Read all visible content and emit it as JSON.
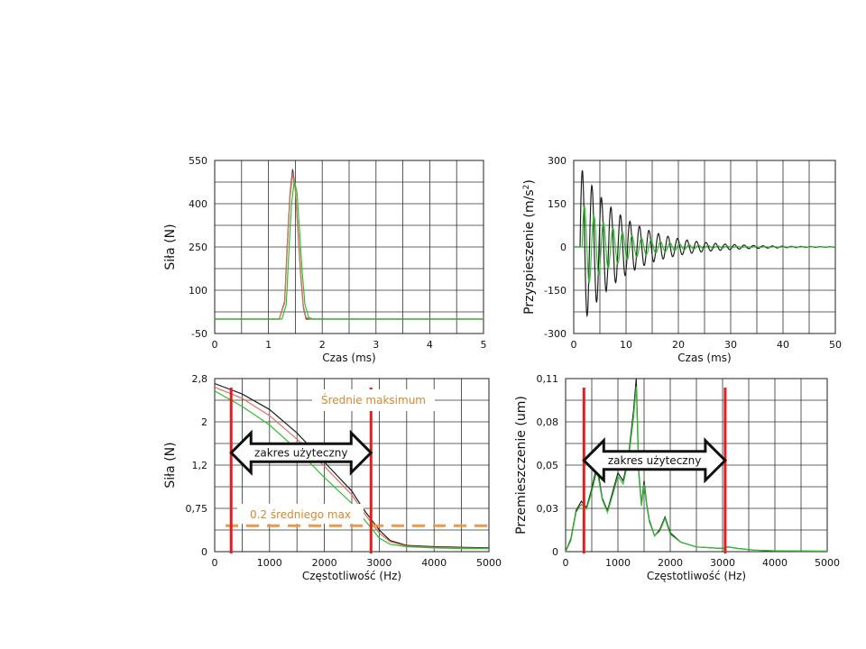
{
  "chart_data": [
    {
      "id": "force-time",
      "type": "line",
      "xlabel": "Czas (ms)",
      "ylabel": "Siła (N)",
      "xlim": [
        0,
        5
      ],
      "ylim": [
        -50,
        550
      ],
      "xticks": [
        0,
        1,
        2,
        3,
        4,
        5
      ],
      "yticks": [
        -50,
        100,
        250,
        400,
        550
      ],
      "grid": true,
      "series": [
        {
          "color": "#404040",
          "x": [
            0,
            1.2,
            1.3,
            1.35,
            1.4,
            1.45,
            1.5,
            1.55,
            1.6,
            1.65,
            1.7,
            1.8,
            5
          ],
          "y": [
            0,
            0,
            60,
            260,
            430,
            520,
            450,
            300,
            150,
            40,
            0,
            0,
            0
          ]
        },
        {
          "color": "#e07060",
          "x": [
            0,
            1.2,
            1.3,
            1.35,
            1.4,
            1.45,
            1.5,
            1.55,
            1.6,
            1.65,
            1.7,
            1.8,
            5
          ],
          "y": [
            0,
            0,
            55,
            250,
            420,
            505,
            445,
            305,
            160,
            45,
            5,
            0,
            0
          ]
        },
        {
          "color": "#30c030",
          "x": [
            0,
            1.25,
            1.33,
            1.38,
            1.43,
            1.48,
            1.53,
            1.58,
            1.63,
            1.68,
            1.75,
            1.85,
            5
          ],
          "y": [
            0,
            0,
            50,
            230,
            400,
            480,
            440,
            300,
            160,
            50,
            5,
            0,
            0
          ]
        }
      ]
    },
    {
      "id": "accel-time",
      "type": "line",
      "xlabel": "Czas (ms)",
      "ylabel": "Przyspieszenie (m/s",
      "ylabel_sup": "2",
      "ylabel_end": ")",
      "xlim": [
        0,
        50
      ],
      "ylim": [
        -300,
        300
      ],
      "xticks": [
        0,
        10,
        20,
        30,
        40,
        50
      ],
      "yticks": [
        -300,
        -150,
        0,
        150,
        300
      ],
      "grid": true,
      "series": [
        {
          "color": "#202020",
          "decay": 0.12,
          "amp": 280,
          "freq": 0.55,
          "start": 1.2
        },
        {
          "color": "#30c030",
          "decay": 0.14,
          "amp": 150,
          "freq": 0.55,
          "start": 1.6
        }
      ]
    },
    {
      "id": "force-spectrum",
      "type": "line",
      "xlabel": "Częstotliwość (Hz)",
      "ylabel": "Siła (N)",
      "xlim": [
        0,
        5000
      ],
      "ylim": [
        0,
        2.8
      ],
      "xticks": [
        0,
        1000,
        2000,
        3000,
        4000,
        5000
      ],
      "yticks": [
        0,
        0.75,
        1.2,
        2,
        2.8
      ],
      "ytick_labels": [
        "0",
        "0,75",
        "1,2",
        "2",
        "2,8"
      ],
      "grid": true,
      "series": [
        {
          "color": "#202020",
          "x": [
            0,
            500,
            1000,
            1500,
            2000,
            2500,
            2700,
            3000,
            3200,
            3500,
            4000,
            4500,
            5000
          ],
          "y": [
            2.72,
            2.55,
            2.3,
            1.92,
            1.45,
            0.98,
            0.7,
            0.35,
            0.18,
            0.1,
            0.08,
            0.07,
            0.06
          ]
        },
        {
          "color": "#e07060",
          "x": [
            0,
            500,
            1000,
            1500,
            2000,
            2500,
            2700,
            3000,
            3200,
            3500,
            4000,
            4500,
            5000
          ],
          "y": [
            2.66,
            2.48,
            2.2,
            1.82,
            1.38,
            0.92,
            0.65,
            0.3,
            0.16,
            0.09,
            0.07,
            0.06,
            0.05
          ]
        },
        {
          "color": "#30c030",
          "x": [
            0,
            500,
            1000,
            1500,
            2000,
            2500,
            2700,
            3000,
            3200,
            3500,
            4000,
            4500,
            5000
          ],
          "y": [
            2.6,
            2.35,
            2.05,
            1.65,
            1.2,
            0.78,
            0.55,
            0.22,
            0.12,
            0.08,
            0.06,
            0.05,
            0.05
          ]
        }
      ],
      "vlines": [
        {
          "x": 300,
          "color": "#e02020"
        },
        {
          "x": 2850,
          "color": "#e02020"
        }
      ],
      "hline": {
        "y": 0.42,
        "color": "#e89a4a"
      },
      "arrow": {
        "x1": 300,
        "x2": 2850,
        "y": 1.6,
        "label": "zakres użyteczny"
      },
      "annotations": {
        "max_label": "Średnie maksimum",
        "fraction_label": "0.2 średniego max"
      }
    },
    {
      "id": "displacement-spectrum",
      "type": "line",
      "xlabel": "Częstotliwość (Hz)",
      "ylabel": "Przemieszczenie (um)",
      "xlim": [
        0,
        5000
      ],
      "ylim": [
        0,
        0.11
      ],
      "xticks": [
        0,
        1000,
        2000,
        3000,
        4000,
        5000
      ],
      "yticks": [
        0,
        0.03,
        0.05,
        0.08,
        0.11
      ],
      "ytick_labels": [
        "0",
        "0,03",
        "0,05",
        "0,08",
        "0,11"
      ],
      "grid": true,
      "series": [
        {
          "color": "#202020",
          "x": [
            0,
            100,
            200,
            300,
            400,
            500,
            600,
            700,
            800,
            900,
            1000,
            1100,
            1200,
            1300,
            1350,
            1400,
            1450,
            1500,
            1550,
            1600,
            1700,
            1800,
            1900,
            2000,
            2200,
            2500,
            3000,
            3100,
            3300,
            3600,
            4000,
            5000
          ],
          "y": [
            0.0,
            0.008,
            0.026,
            0.032,
            0.028,
            0.04,
            0.055,
            0.034,
            0.026,
            0.038,
            0.05,
            0.045,
            0.06,
            0.09,
            0.11,
            0.05,
            0.03,
            0.045,
            0.03,
            0.02,
            0.01,
            0.014,
            0.022,
            0.012,
            0.006,
            0.003,
            0.002,
            0.003,
            0.002,
            0.001,
            0.0005,
            0.0003
          ]
        },
        {
          "color": "#30c030",
          "x": [
            0,
            100,
            200,
            300,
            400,
            500,
            600,
            700,
            800,
            900,
            1000,
            1100,
            1200,
            1300,
            1350,
            1400,
            1450,
            1500,
            1550,
            1600,
            1700,
            1800,
            1900,
            2000,
            2200,
            2500,
            3000,
            3100,
            3300,
            3600,
            4000,
            5000
          ],
          "y": [
            0.0,
            0.007,
            0.025,
            0.03,
            0.027,
            0.038,
            0.052,
            0.033,
            0.025,
            0.036,
            0.048,
            0.043,
            0.058,
            0.086,
            0.105,
            0.048,
            0.029,
            0.043,
            0.029,
            0.019,
            0.01,
            0.013,
            0.021,
            0.011,
            0.006,
            0.003,
            0.002,
            0.003,
            0.002,
            0.001,
            0.0005,
            0.0003
          ]
        }
      ],
      "vlines": [
        {
          "x": 350,
          "color": "#e02020"
        },
        {
          "x": 3050,
          "color": "#e02020"
        }
      ],
      "arrow": {
        "x1": 350,
        "x2": 3050,
        "y": 0.058,
        "label": "zakres użyteczny"
      }
    }
  ]
}
